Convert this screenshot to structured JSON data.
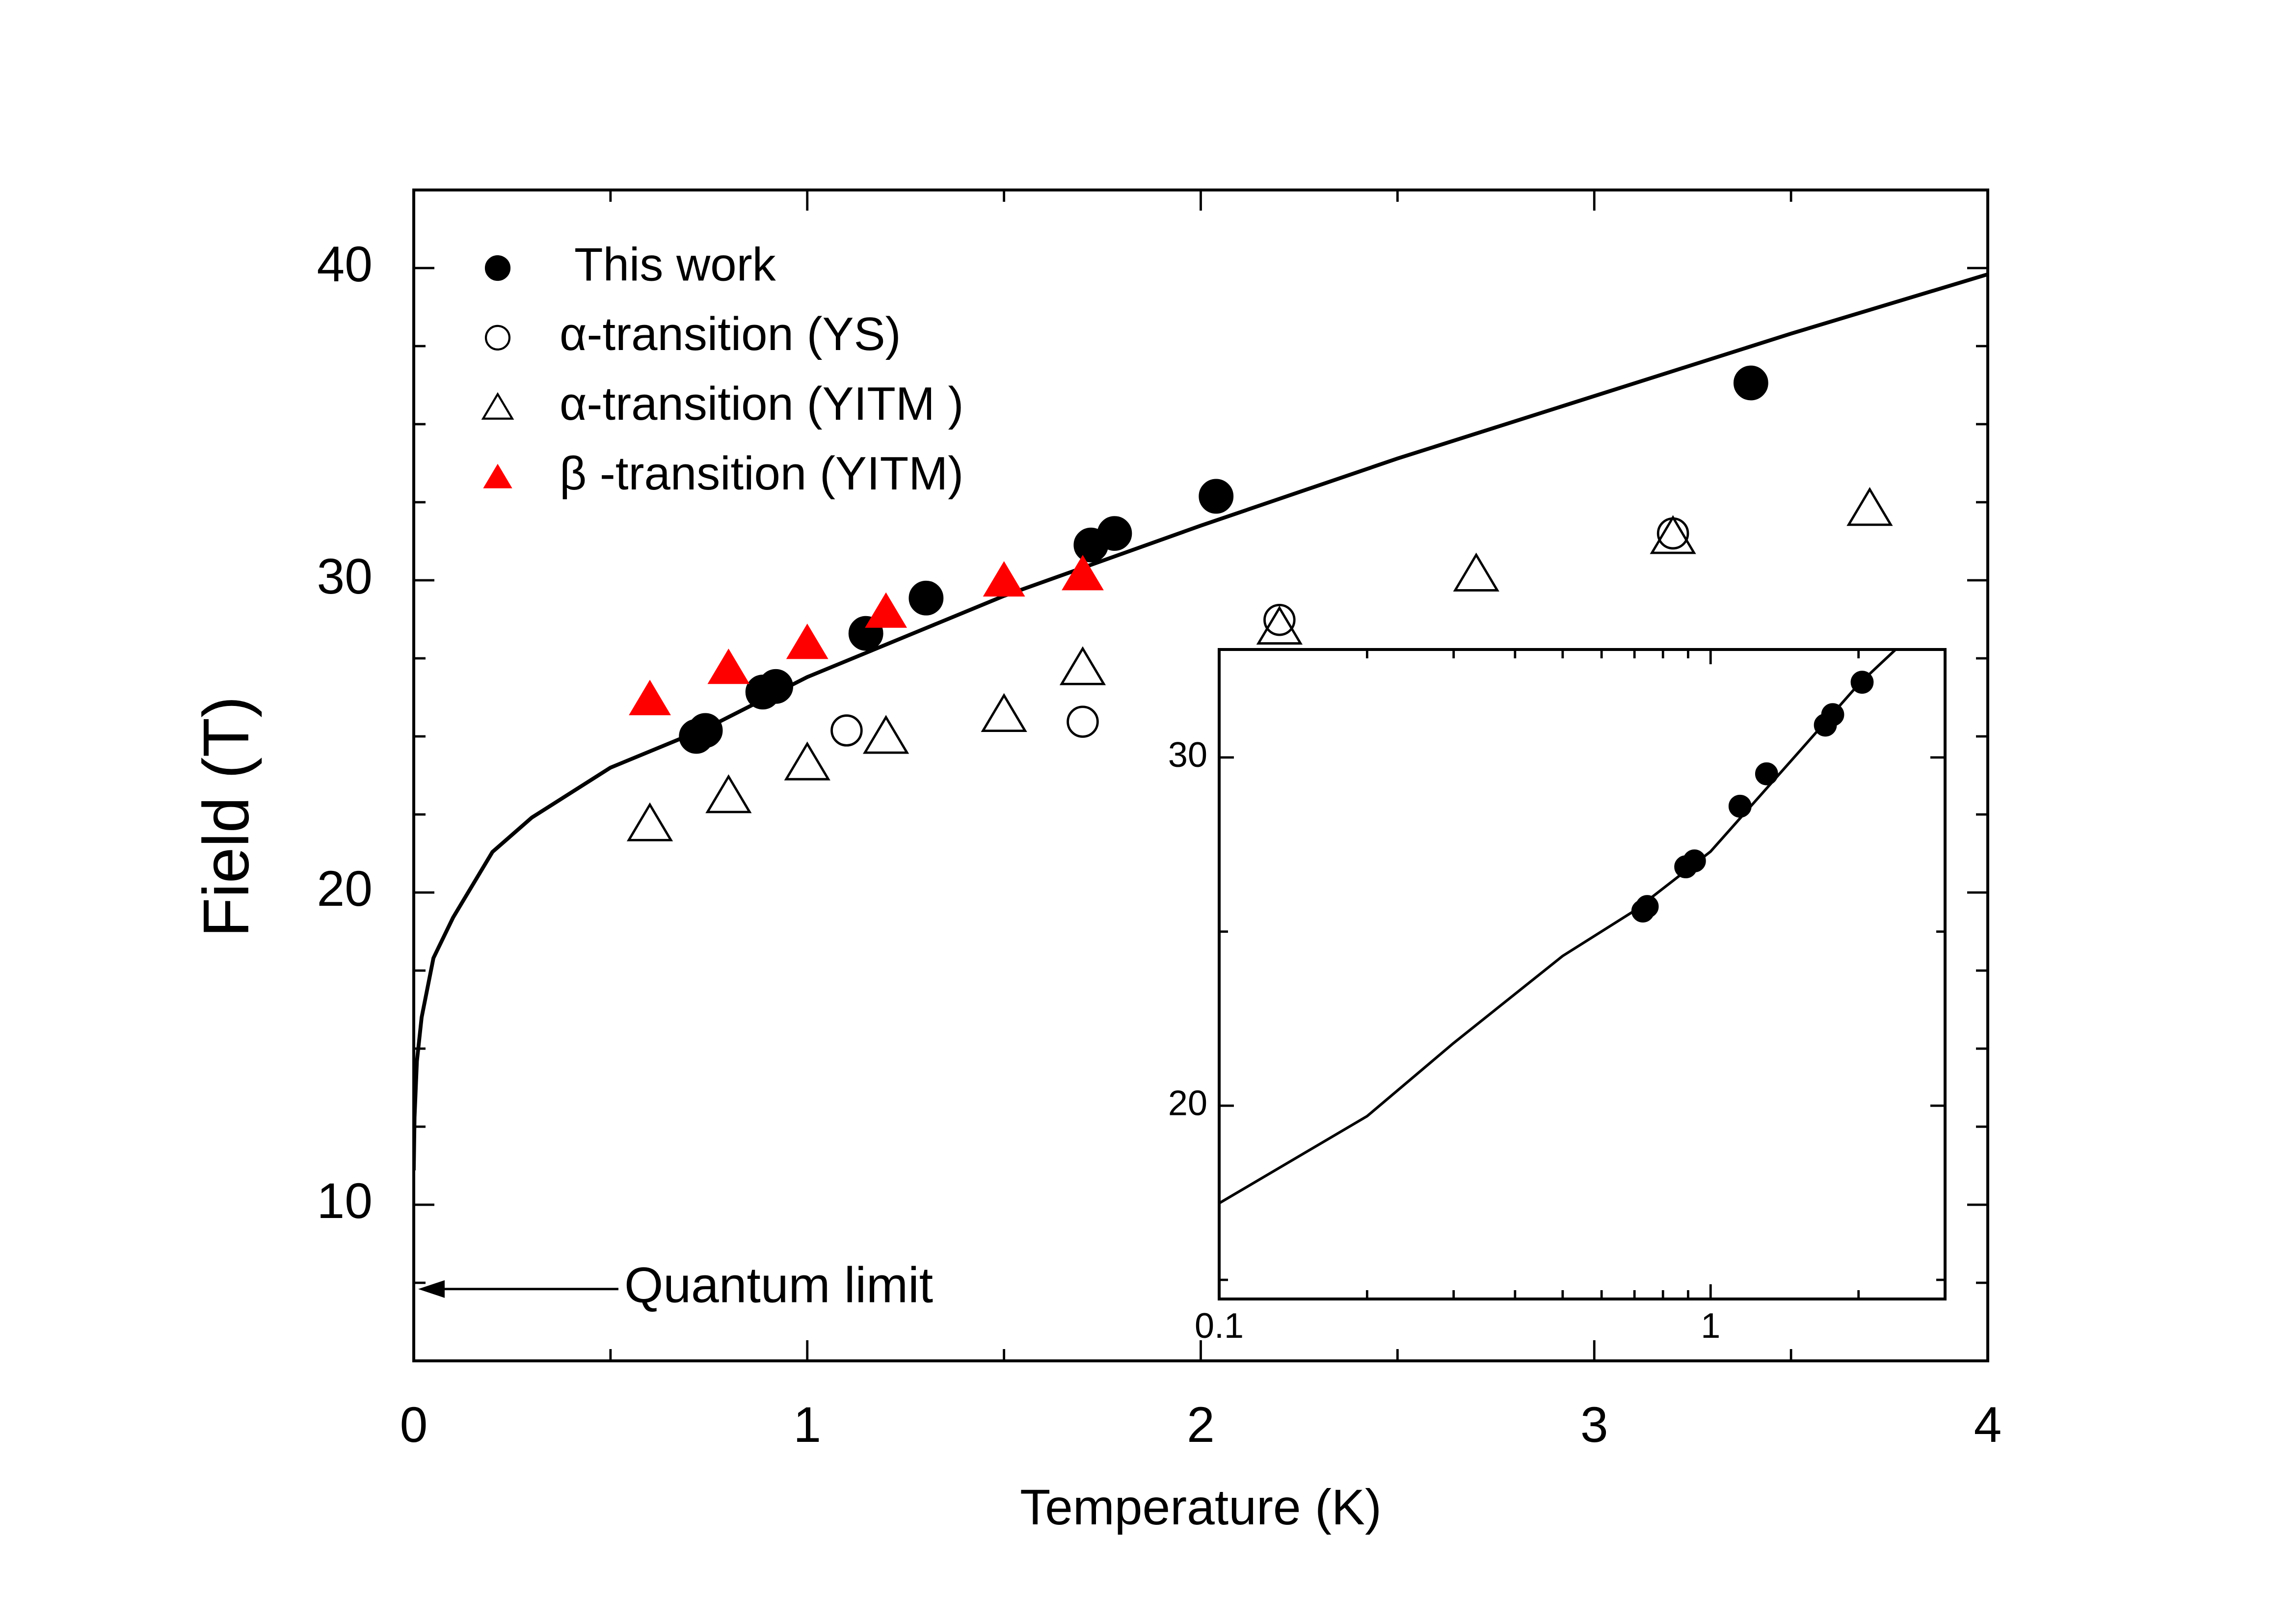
{
  "chart_data": [
    {
      "type": "scatter",
      "xlabel": "Temperature (K)",
      "ylabel": "Field (T)",
      "xlim": [
        0,
        4
      ],
      "ylim": [
        5,
        42.5
      ],
      "xticks": [
        0,
        1,
        2,
        3,
        4
      ],
      "xminorticks": [
        0.5,
        1.5,
        2.5,
        3.5
      ],
      "yticks": [
        10,
        20,
        30,
        40
      ],
      "yminorticks": [
        7.5,
        12.5,
        15,
        17.5,
        22.5,
        25,
        27.5,
        32.5,
        35,
        37.5
      ],
      "legend": "upper left",
      "series": [
        {
          "name": "This work",
          "color": "#000000",
          "marker": "circle",
          "filled": true,
          "x": [
            0.718,
            0.741,
            0.887,
            0.92,
            1.149,
            1.302,
            1.721,
            1.781,
            2.039,
            3.398
          ],
          "values": [
            25.0,
            25.19,
            26.42,
            26.6,
            28.3,
            29.43,
            31.13,
            31.5,
            32.69,
            36.32
          ]
        },
        {
          "name": "α-transition (YS)",
          "color": "#000000",
          "marker": "circle",
          "filled": false,
          "x": [
            1.1,
            1.7,
            2.2,
            3.2
          ],
          "values": [
            25.19,
            25.47,
            28.73,
            31.5
          ]
        },
        {
          "name": "α-transition (YITM )",
          "color": "#000000",
          "marker": "triangle",
          "filled": false,
          "x": [
            0.6,
            0.8,
            1.0,
            1.2,
            1.5,
            1.7,
            2.2,
            2.7,
            3.2,
            3.7
          ],
          "values": [
            22.2,
            23.1,
            24.15,
            25.0,
            25.7,
            27.2,
            28.5,
            30.2,
            31.4,
            32.3
          ]
        },
        {
          "name": "β -transition (YITM)",
          "color": "#ff0000",
          "marker": "triangle",
          "filled": true,
          "x": [
            0.6,
            0.8,
            1.0,
            1.2,
            1.5,
            1.7
          ],
          "values": [
            26.2,
            27.2,
            28.0,
            29.0,
            30.0,
            30.2
          ]
        }
      ],
      "curves": [
        {
          "color": "#000000",
          "x": [
            0,
            0.002,
            0.008,
            0.02,
            0.05,
            0.1,
            0.2,
            0.3,
            0.5,
            0.75,
            1,
            1.5,
            2,
            2.5,
            3,
            3.5,
            4
          ],
          "values": [
            11.1,
            12.8,
            14.6,
            16.0,
            17.9,
            19.2,
            21.3,
            22.4,
            24.0,
            25.3,
            26.9,
            29.5,
            31.75,
            33.9,
            35.9,
            37.9,
            39.8
          ]
        }
      ],
      "annotation": {
        "text": "Quantum limit",
        "x": 0,
        "y": 7.3
      }
    },
    {
      "type": "scatter",
      "xscale": "log",
      "xlim": [
        0.1,
        3
      ],
      "ylim": [
        14.45,
        33.1
      ],
      "xticks": [
        0.1,
        1
      ],
      "xminorticks": [
        0.2,
        0.3,
        0.4,
        0.5,
        0.6,
        0.7,
        0.8,
        0.9,
        2,
        3
      ],
      "yticks": [
        20,
        30
      ],
      "yminorticks": [
        15,
        25
      ],
      "series": [
        {
          "color": "#000000",
          "marker": "circle",
          "filled": true,
          "x": [
            0.728,
            0.743,
            0.89,
            0.927,
            1.148,
            1.3,
            1.712,
            1.772,
            2.034
          ],
          "values": [
            25.59,
            25.72,
            26.86,
            27.03,
            28.6,
            29.53,
            30.93,
            31.23,
            32.16
          ]
        }
      ],
      "curves": [
        {
          "color": "#000000",
          "x": [
            0.1,
            0.2,
            0.3,
            0.5,
            0.7,
            1,
            1.5,
            2,
            2.38
          ],
          "values": [
            17.2,
            19.7,
            21.8,
            24.3,
            25.6,
            27.3,
            30.1,
            32.1,
            33.1
          ]
        }
      ]
    }
  ]
}
